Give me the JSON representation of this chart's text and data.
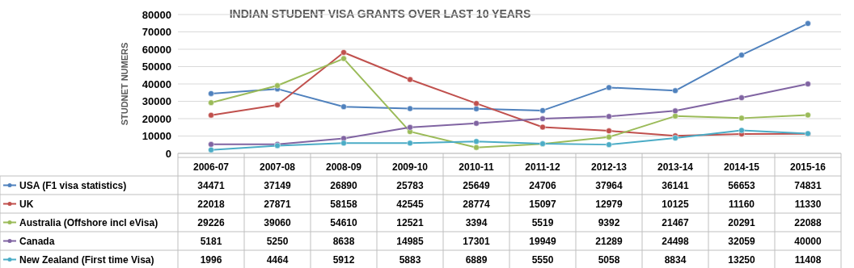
{
  "chart_data": {
    "type": "line",
    "title": "INDIAN STUDENT VISA GRANTS OVER LAST 10 YEARS",
    "ylabel": "STUDNET NUMERS",
    "categories": [
      "2006-07",
      "2007-08",
      "2008-09",
      "2009-10",
      "2010-11",
      "2011-12",
      "2012-13",
      "2013-14",
      "2014-15",
      "2015-16"
    ],
    "series": [
      {
        "name": "USA (F1 visa statistics)",
        "color": "#4f81bd",
        "values": [
          34471,
          37149,
          26890,
          25783,
          25649,
          24706,
          37964,
          36141,
          56653,
          74831
        ]
      },
      {
        "name": "UK",
        "color": "#c0504d",
        "values": [
          22018,
          27871,
          58158,
          42545,
          28774,
          15097,
          12979,
          10125,
          11160,
          11330
        ]
      },
      {
        "name": "Australia (Offshore incl eVisa)",
        "color": "#9bbb59",
        "values": [
          29226,
          39060,
          54610,
          12521,
          3394,
          5519,
          9392,
          21467,
          20291,
          22088
        ]
      },
      {
        "name": "Canada",
        "color": "#8064a2",
        "values": [
          5181,
          5250,
          8638,
          14985,
          17301,
          19949,
          21289,
          24498,
          32059,
          40000
        ]
      },
      {
        "name": "New Zealand (First time Visa)",
        "color": "#4bacc6",
        "values": [
          1996,
          4464,
          5912,
          5883,
          6889,
          5550,
          5058,
          8834,
          13250,
          11408
        ]
      }
    ],
    "ylim": [
      0,
      80000
    ],
    "yticks": [
      0,
      10000,
      20000,
      30000,
      40000,
      50000,
      60000,
      70000,
      80000
    ],
    "grid": "y",
    "legend": "bottom",
    "marker": "circle",
    "data_labels": true
  }
}
